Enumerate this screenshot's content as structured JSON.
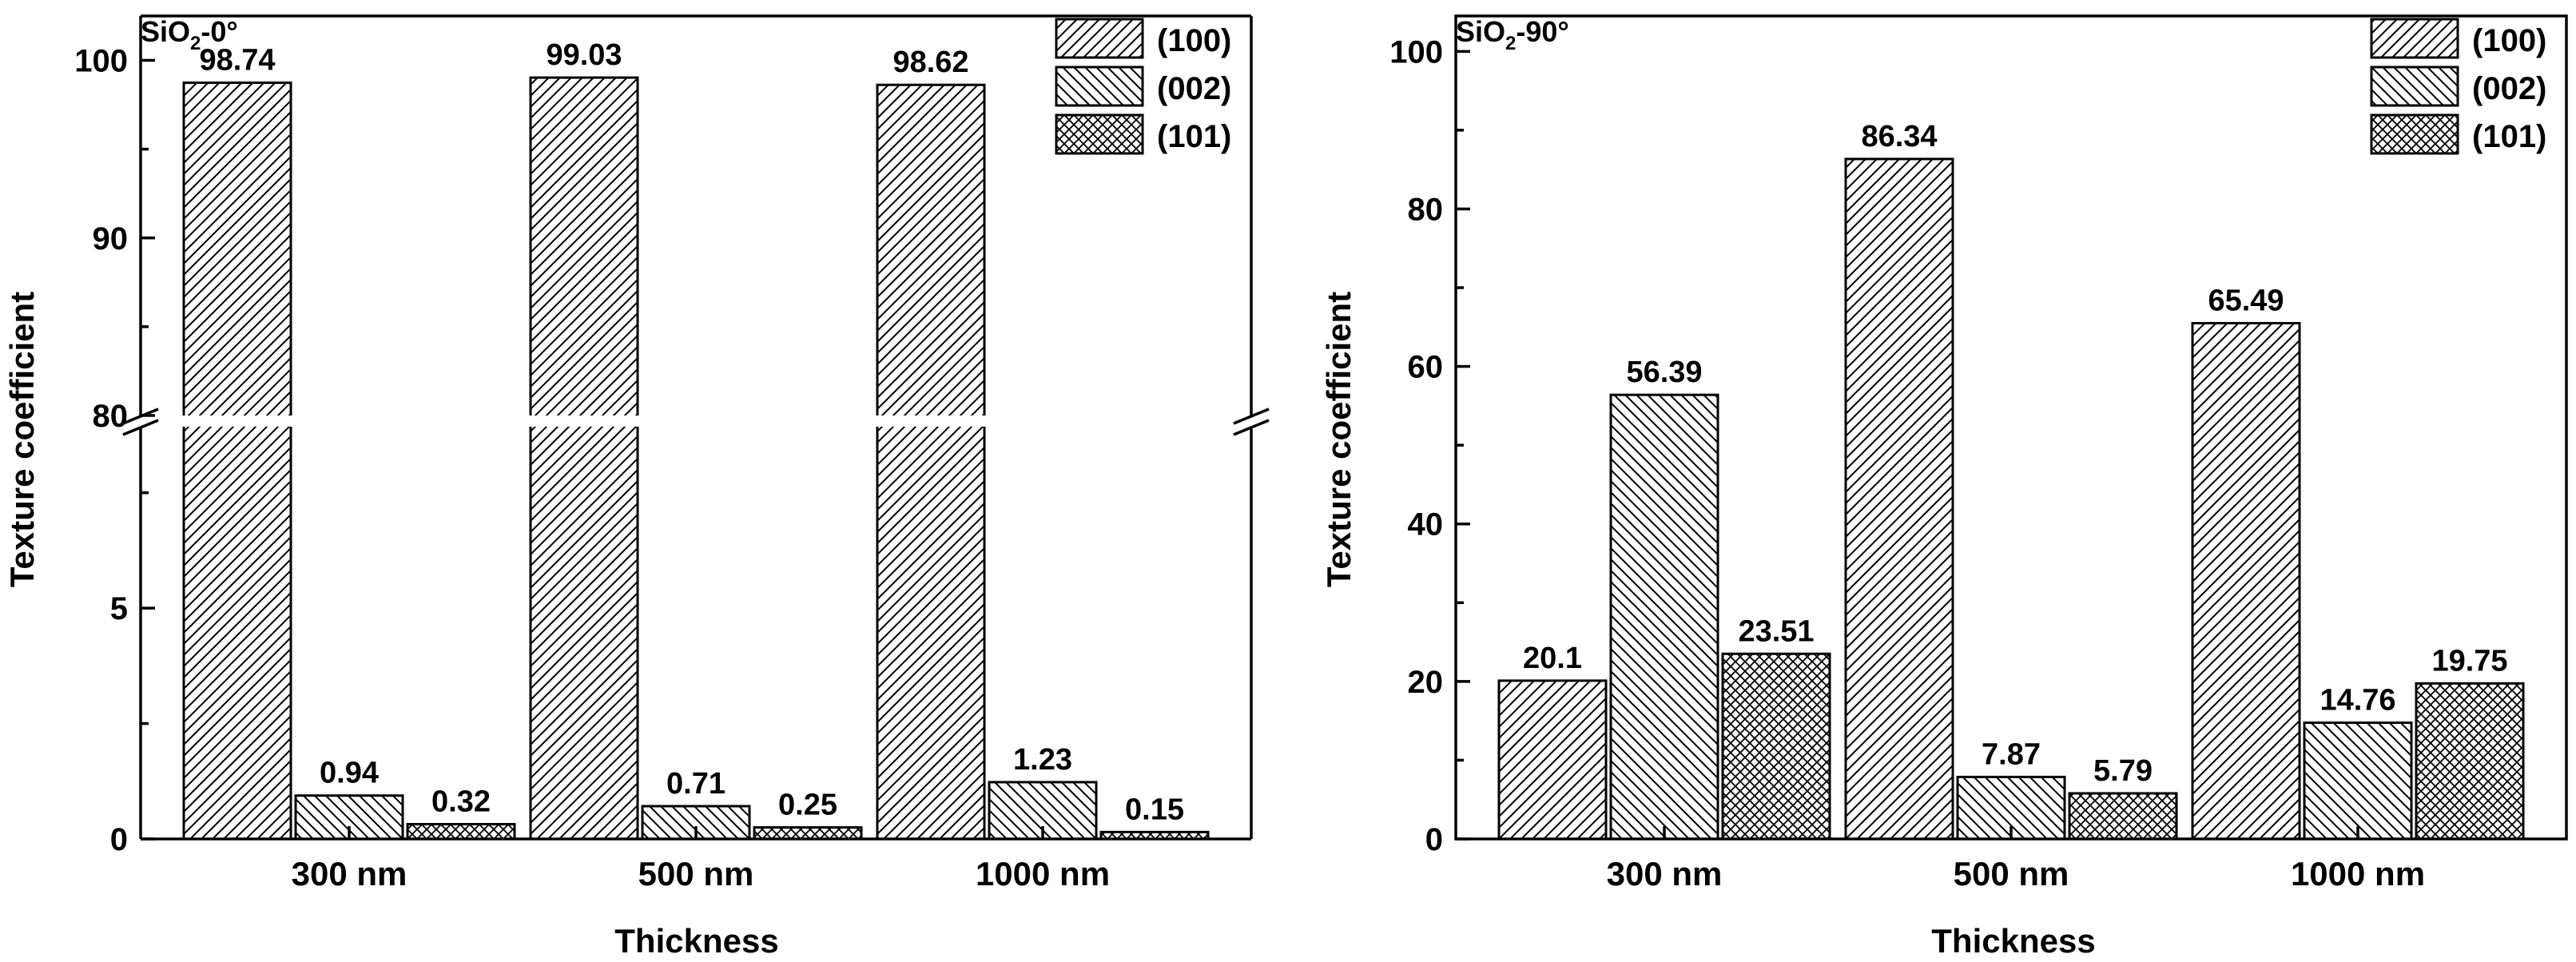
{
  "chart_data": [
    {
      "type": "bar",
      "panel_label_main": "SiO",
      "panel_label_sub": "2",
      "panel_label_rest": "-0°",
      "categories": [
        "300 nm",
        "500 nm",
        "1000 nm"
      ],
      "xlabel": "Thickness",
      "ylabel": "Texture coefficient",
      "axis_break": true,
      "lower_ylim": [
        0,
        9
      ],
      "upper_ylim": [
        80,
        102.5
      ],
      "lower_ticks": [
        "0",
        "5"
      ],
      "upper_ticks": [
        "80",
        "90",
        "100"
      ],
      "series": [
        {
          "name": "(100)",
          "values": [
            98.74,
            99.03,
            98.62
          ],
          "labels": [
            "98.74",
            "99.03",
            "98.62"
          ]
        },
        {
          "name": "(002)",
          "values": [
            0.94,
            0.71,
            1.23
          ],
          "labels": [
            "0.94",
            "0.71",
            "1.23"
          ]
        },
        {
          "name": "(101)",
          "values": [
            0.32,
            0.25,
            0.15
          ],
          "labels": [
            "0.32",
            "0.25",
            "0.15"
          ]
        }
      ],
      "legend_position": "top-right"
    },
    {
      "type": "bar",
      "panel_label_main": "SiO",
      "panel_label_sub": "2",
      "panel_label_rest": "-90°",
      "categories": [
        "300 nm",
        "500 nm",
        "1000 nm"
      ],
      "xlabel": "Thickness",
      "ylabel": "Texture coefficient",
      "axis_break": false,
      "ylim": [
        0,
        104.5
      ],
      "ticks": [
        "0",
        "20",
        "40",
        "60",
        "80",
        "100"
      ],
      "series": [
        {
          "name": "(100)",
          "values": [
            20.1,
            86.34,
            65.49
          ],
          "labels": [
            "20.1",
            "86.34",
            "65.49"
          ]
        },
        {
          "name": "(002)",
          "values": [
            56.39,
            7.87,
            14.76
          ],
          "labels": [
            "56.39",
            "7.87",
            "14.76"
          ]
        },
        {
          "name": "(101)",
          "values": [
            23.51,
            5.79,
            19.75
          ],
          "labels": [
            "23.51",
            "5.79",
            "19.75"
          ]
        }
      ],
      "legend_position": "top-right"
    }
  ]
}
